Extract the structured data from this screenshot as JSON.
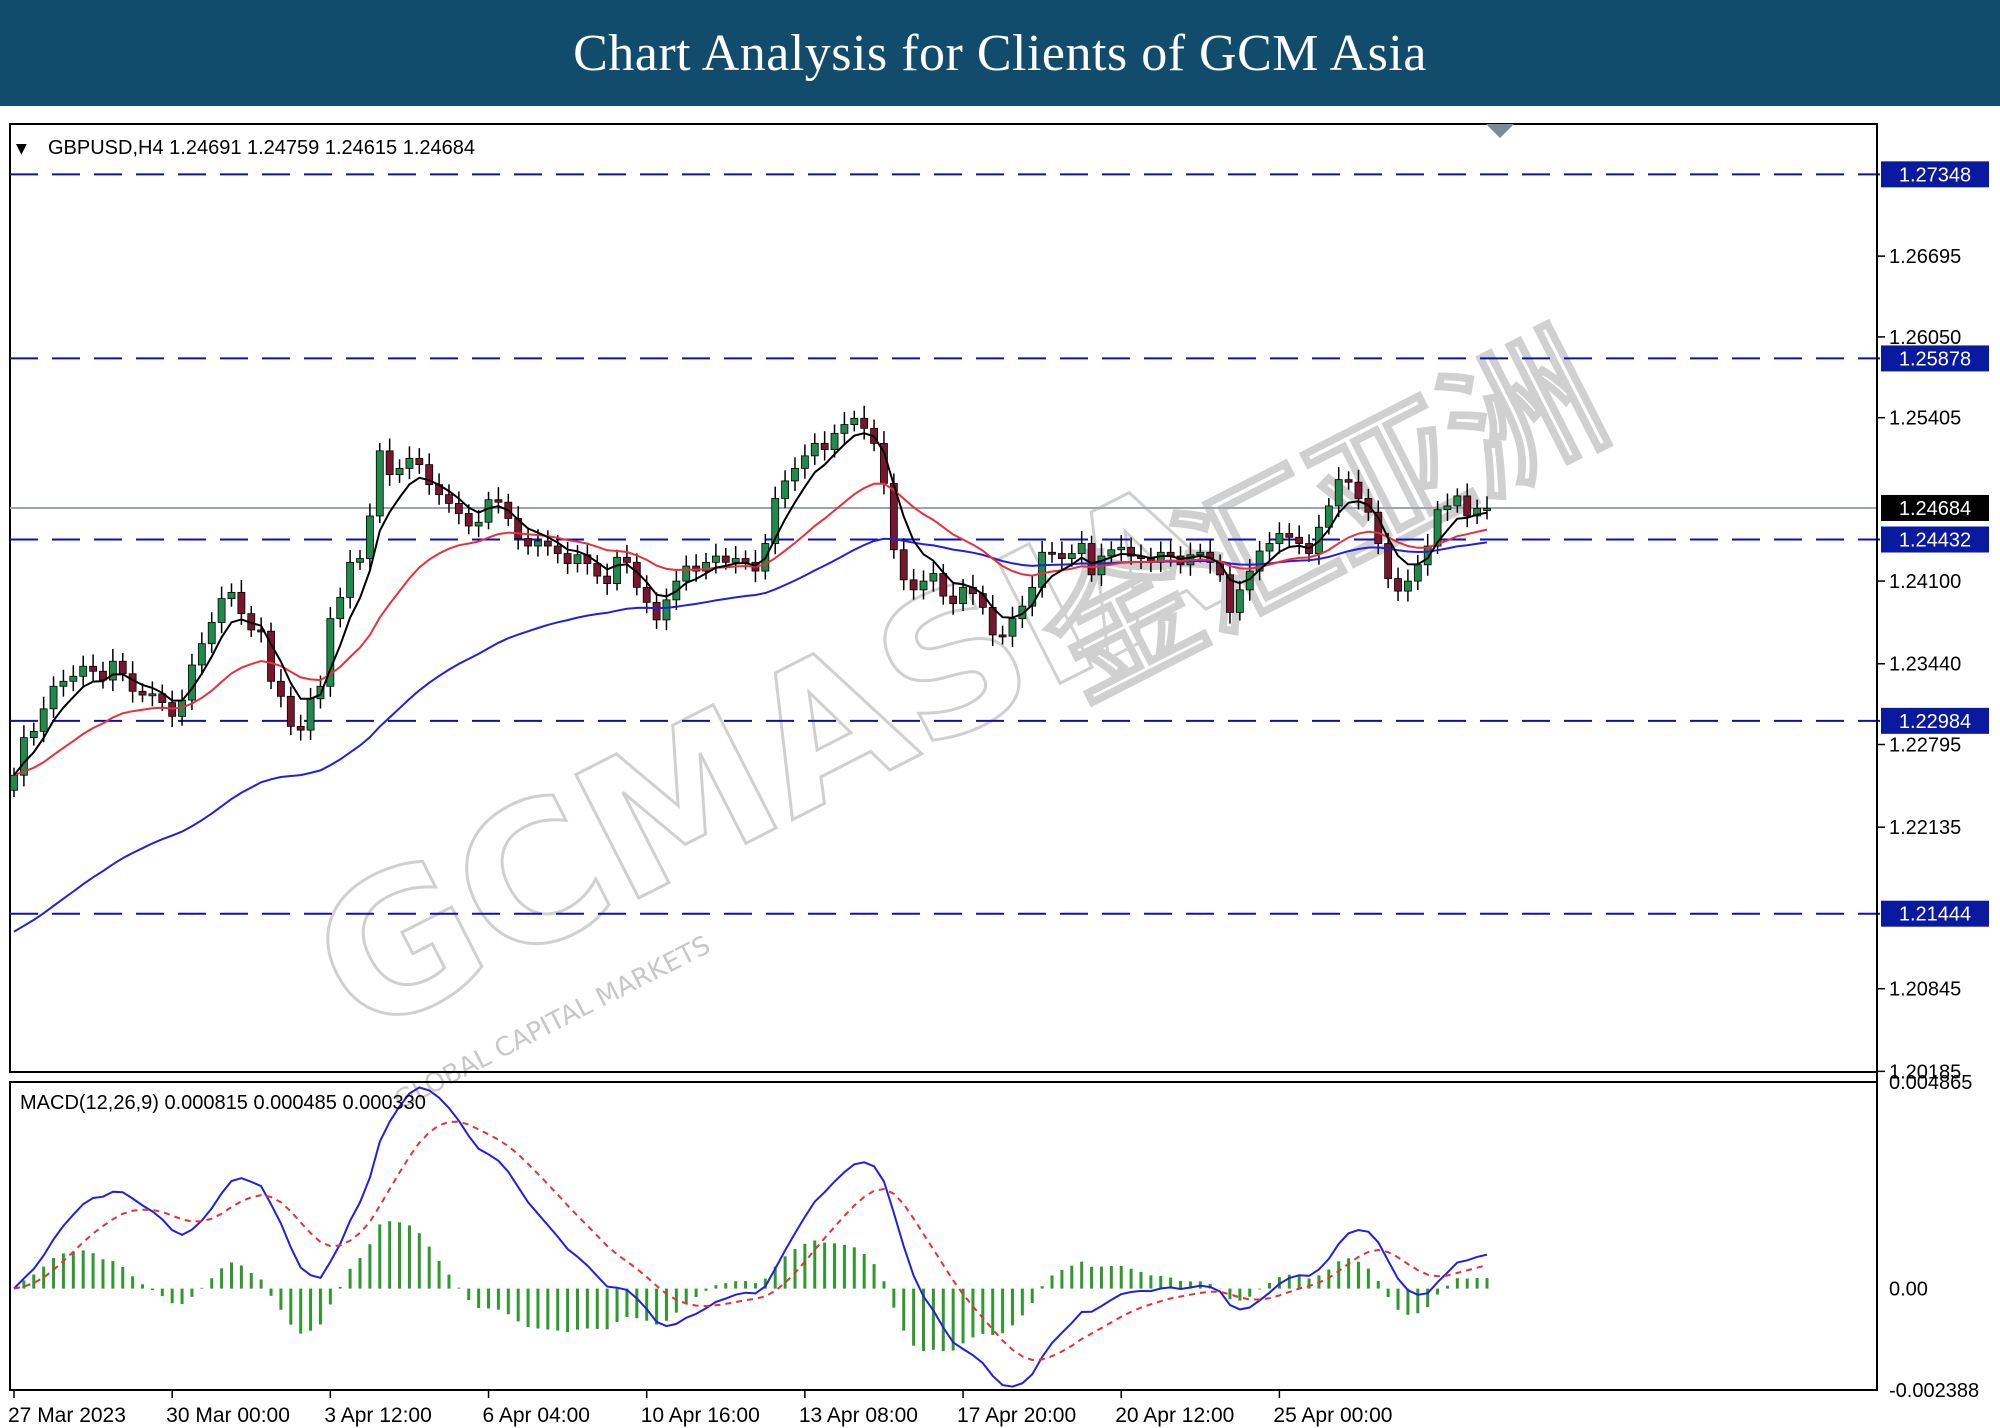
{
  "banner": {
    "title": "Chart Analysis for Clients of GCM Asia",
    "color": "#124c6c"
  },
  "price_header": {
    "arrow": "▼",
    "text": "GBPUSD,H4  1.24691 1.24759 1.24615 1.24684"
  },
  "macd_header": {
    "text": "MACD(12,26,9) 0.000815 0.000485 0.000330"
  },
  "watermark": {
    "main": "GCMASIA",
    "chinese": "金汇亚洲",
    "sub": "GLOBAL CAPITAL MARKETS"
  },
  "chart_data": [
    {
      "type": "candlestick",
      "symbol": "GBPUSD",
      "timeframe": "H4",
      "ohlc_last": {
        "open": 1.24691,
        "high": 1.24759,
        "low": 1.24615,
        "close": 1.24684
      },
      "ylim": [
        1.2018,
        1.2775
      ],
      "y_ticks": [
        "1.26695",
        "1.26050",
        "1.25405",
        "1.24100",
        "1.23440",
        "1.22795",
        "1.22135",
        "1.20845",
        "1.20185"
      ],
      "x_tick_labels": [
        "27 Mar 2023",
        "30 Mar 00:00",
        "3 Apr 12:00",
        "6 Apr 04:00",
        "10 Apr 16:00",
        "13 Apr 08:00",
        "17 Apr 20:00",
        "20 Apr 12:00",
        "25 Apr 00:00"
      ],
      "x_tick_bars": [
        0,
        16,
        32,
        48,
        64,
        80,
        96,
        112,
        128
      ],
      "levels": [
        {
          "value": 1.27348,
          "label": "1.27348"
        },
        {
          "value": 1.25878,
          "label": "1.25878"
        },
        {
          "value": 1.24432,
          "label": "1.24432"
        },
        {
          "value": 1.22984,
          "label": "1.22984"
        },
        {
          "value": 1.21444,
          "label": "1.21444"
        }
      ],
      "current_price": {
        "value": 1.24684,
        "label": "1.24684"
      },
      "closes": [
        1.2255,
        1.2285,
        1.229,
        1.2308,
        1.2326,
        1.233,
        1.2334,
        1.2342,
        1.2338,
        1.2331,
        1.2346,
        1.2336,
        1.2322,
        1.2319,
        1.232,
        1.2313,
        1.2302,
        1.2315,
        1.2343,
        1.236,
        1.2377,
        1.2396,
        1.2401,
        1.2384,
        1.2371,
        1.237,
        1.233,
        1.2318,
        1.2294,
        1.2291,
        1.2316,
        1.2326,
        1.238,
        1.2397,
        1.2425,
        1.2428,
        1.2462,
        1.2514,
        1.2495,
        1.25,
        1.2508,
        1.2503,
        1.2487,
        1.2479,
        1.2472,
        1.2464,
        1.2454,
        1.2457,
        1.2475,
        1.2473,
        1.246,
        1.2444,
        1.2438,
        1.2442,
        1.2438,
        1.2432,
        1.2424,
        1.2431,
        1.2424,
        1.2414,
        1.2408,
        1.2429,
        1.2425,
        1.2405,
        1.2393,
        1.2379,
        1.2395,
        1.241,
        1.2422,
        1.2418,
        1.2425,
        1.243,
        1.2425,
        1.2428,
        1.2425,
        1.2418,
        1.244,
        1.2476,
        1.249,
        1.25,
        1.251,
        1.252,
        1.2515,
        1.2528,
        1.2535,
        1.254,
        1.2532,
        1.252,
        1.2488,
        1.2435,
        1.2411,
        1.2403,
        1.241,
        1.2416,
        1.2398,
        1.2392,
        1.2405,
        1.24,
        1.2389,
        1.2367,
        1.2366,
        1.238,
        1.239,
        1.2405,
        1.2433,
        1.2432,
        1.2428,
        1.2432,
        1.244,
        1.2415,
        1.243,
        1.2435,
        1.2437,
        1.243,
        1.2428,
        1.2425,
        1.2433,
        1.243,
        1.2423,
        1.2431,
        1.2433,
        1.2425,
        1.2415,
        1.2385,
        1.2403,
        1.2418,
        1.2434,
        1.244,
        1.2448,
        1.2445,
        1.244,
        1.2432,
        1.2453,
        1.247,
        1.2491,
        1.2489,
        1.2476,
        1.2465,
        1.244,
        1.2412,
        1.2402,
        1.241,
        1.2423,
        1.2438,
        1.2467,
        1.247,
        1.2478,
        1.2462,
        1.2468,
        1.2468
      ],
      "ema_fast": {
        "period": 5,
        "color": "#000000"
      },
      "ema_mid": {
        "period": 20,
        "color": "#e8303a"
      },
      "ema_slow": {
        "period": 50,
        "color": "#2020e0"
      }
    },
    {
      "type": "macd",
      "params": "MACD(12,26,9)",
      "values": {
        "macd": 0.000815,
        "signal": 0.000485,
        "histogram": 0.00033
      },
      "ylim": [
        -0.002388,
        0.004865
      ],
      "y_ticks": [
        "0.004865",
        "0.00",
        "-0.002388"
      ]
    }
  ],
  "colors": {
    "bull": "#1f8a4c",
    "bear": "#7a1530",
    "level_line": "#1010b0",
    "label_bg": "#0a1aa0",
    "price_label_bg": "#000000",
    "macd_line": "#2020e0",
    "signal_line": "#e8303a",
    "histogram": "#2e9a2e",
    "grid_border": "#000000"
  }
}
